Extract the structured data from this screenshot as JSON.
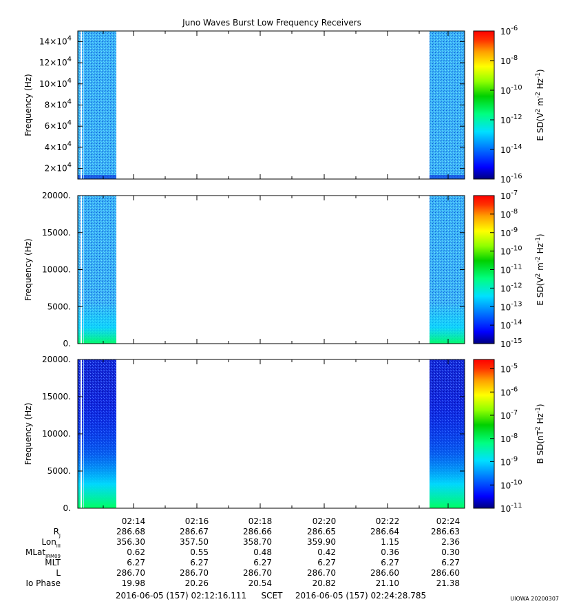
{
  "chart_data": {
    "type": "heatmap",
    "title": "Juno Waves Burst Low Frequency Receivers",
    "time_axis": {
      "ticks": [
        "02:14",
        "02:16",
        "02:18",
        "02:20",
        "02:22",
        "02:24"
      ],
      "start_label": "2016-06-05 (157) 02:12:16.111",
      "frame_label": "SCET",
      "end_label": "2016-06-05 (157) 02:24:28.785"
    },
    "panels": [
      {
        "ylabel": "Frequency (Hz)",
        "yticks": [
          {
            "mant": "2",
            "exp": "4"
          },
          {
            "mant": "4",
            "exp": "4"
          },
          {
            "mant": "6",
            "exp": "4"
          },
          {
            "mant": "8",
            "exp": "4"
          },
          {
            "mant": "10",
            "exp": "4"
          },
          {
            "mant": "12",
            "exp": "4"
          },
          {
            "mant": "14",
            "exp": "4"
          }
        ],
        "ylim": [
          10000,
          150000
        ],
        "colorbar": {
          "label_main": "E SD(V",
          "label_sup1": "2",
          "label_mid": " m",
          "label_sup2": "-2",
          "label_hz": " Hz",
          "label_sup3": "-1",
          "label_close": ")",
          "ticks": [
            {
              "b": "10",
              "e": "-6"
            },
            {
              "b": "10",
              "e": "-8"
            },
            {
              "b": "10",
              "e": "-10"
            },
            {
              "b": "10",
              "e": "-12"
            },
            {
              "b": "10",
              "e": "-14"
            },
            {
              "b": "10",
              "e": "-16"
            }
          ],
          "range_exp": [
            -16,
            -6
          ]
        }
      },
      {
        "ylabel": "Frequency (Hz)",
        "yticks": [
          "0.",
          "5000.",
          "10000.",
          "15000.",
          "20000."
        ],
        "ylim": [
          0,
          20000
        ],
        "colorbar": {
          "label_main": "E SD(V",
          "label_sup1": "2",
          "label_mid": " m",
          "label_sup2": "-2",
          "label_hz": " Hz",
          "label_sup3": "-1",
          "label_close": ")",
          "ticks": [
            {
              "b": "10",
              "e": "-7"
            },
            {
              "b": "10",
              "e": "-8"
            },
            {
              "b": "10",
              "e": "-9"
            },
            {
              "b": "10",
              "e": "-10"
            },
            {
              "b": "10",
              "e": "-11"
            },
            {
              "b": "10",
              "e": "-12"
            },
            {
              "b": "10",
              "e": "-13"
            },
            {
              "b": "10",
              "e": "-14"
            },
            {
              "b": "10",
              "e": "-15"
            }
          ],
          "range_exp": [
            -15,
            -7
          ]
        }
      },
      {
        "ylabel": "Frequency (Hz)",
        "yticks": [
          "0.",
          "5000.",
          "10000.",
          "15000.",
          "20000."
        ],
        "ylim": [
          0,
          20000
        ],
        "colorbar": {
          "label_main": "B SD(nT",
          "label_sup1": "2",
          "label_mid": "",
          "label_sup2": "",
          "label_hz": " Hz",
          "label_sup3": "-1",
          "label_close": ")",
          "ticks": [
            {
              "b": "10",
              "e": "-5"
            },
            {
              "b": "10",
              "e": "-6"
            },
            {
              "b": "10",
              "e": "-7"
            },
            {
              "b": "10",
              "e": "-8"
            },
            {
              "b": "10",
              "e": "-9"
            },
            {
              "b": "10",
              "e": "-10"
            },
            {
              "b": "10",
              "e": "-11"
            }
          ],
          "range_exp": [
            -11,
            -4.6
          ]
        }
      }
    ],
    "ephemeris": {
      "row_labels": [
        {
          "main": "R",
          "sub": "J"
        },
        {
          "main": "Lon",
          "sub": "III"
        },
        {
          "main": "MLat",
          "sub": "JRM09"
        },
        {
          "main": "MLT",
          "sub": ""
        },
        {
          "main": "L",
          "sub": ""
        },
        {
          "main": "Io Phase",
          "sub": ""
        }
      ],
      "rows": [
        [
          "286.68",
          "286.67",
          "286.66",
          "286.65",
          "286.64",
          "286.63"
        ],
        [
          "356.30",
          "357.50",
          "358.70",
          "359.90",
          "1.15",
          "2.36"
        ],
        [
          "0.62",
          "0.55",
          "0.48",
          "0.42",
          "0.36",
          "0.30"
        ],
        [
          "6.27",
          "6.27",
          "6.27",
          "6.27",
          "6.27",
          "6.27"
        ],
        [
          "286.70",
          "286.70",
          "286.70",
          "286.70",
          "286.60",
          "286.60"
        ],
        [
          "19.98",
          "20.26",
          "20.54",
          "20.82",
          "21.10",
          "21.38"
        ]
      ]
    },
    "footer_stamp": "UIOWA 20200307",
    "colors": {
      "scale": [
        "#00008b",
        "#0000ff",
        "#0080ff",
        "#00e5ff",
        "#00ff66",
        "#00d000",
        "#b0ff00",
        "#ffff00",
        "#ffa000",
        "#ff3000",
        "#ff0000"
      ],
      "speckle_light": "#3fb2ff",
      "speckle_dark": "#1030e0"
    }
  }
}
